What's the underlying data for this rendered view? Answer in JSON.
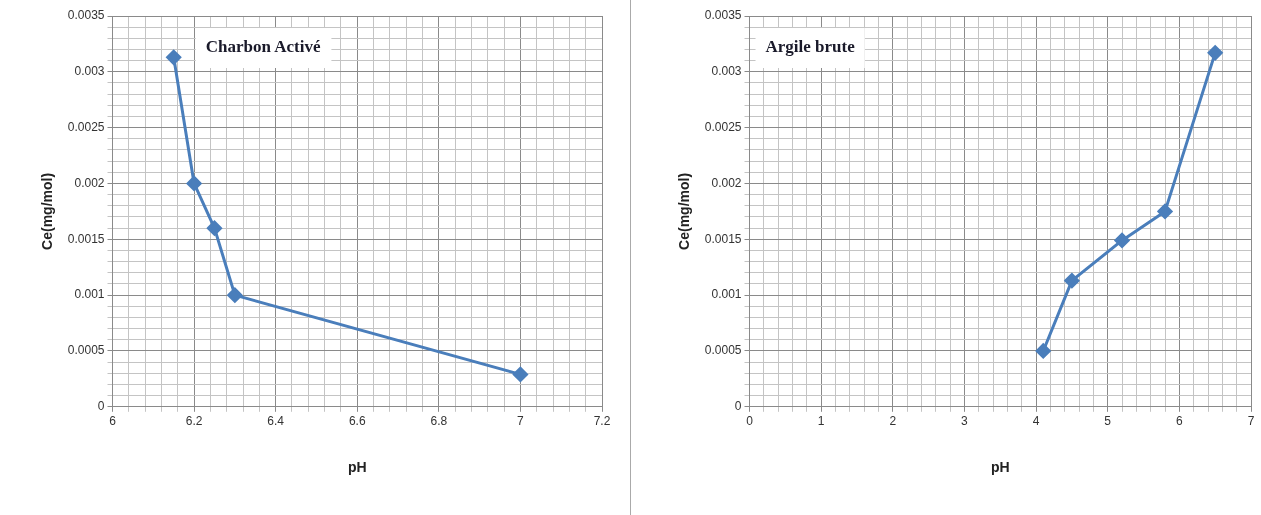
{
  "chart_data": [
    {
      "type": "line",
      "title": "Charbon Activé",
      "xlabel": "pH",
      "ylabel": "Ce(mg/mol)",
      "color": "#4a7ebb",
      "marker": "diamond",
      "grid": true,
      "x": [
        6.15,
        6.2,
        6.25,
        6.3,
        7
      ],
      "values": [
        0.00313,
        0.002,
        0.0016,
        0.001,
        0.00029
      ],
      "xlim": [
        6,
        7.2
      ],
      "ylim": [
        0,
        0.0035
      ],
      "xticks": [
        6,
        {
          "value": 6.04,
          "label": null
        },
        {
          "value": 6.08,
          "label": null
        },
        {
          "value": 6.12,
          "label": null
        },
        {
          "value": 6.16,
          "label": null
        },
        6.2,
        {
          "value": 6.24,
          "label": null
        },
        {
          "value": 6.28,
          "label": null
        },
        {
          "value": 6.32,
          "label": null
        },
        {
          "value": 6.36,
          "label": null
        },
        6.4,
        {
          "value": 6.44,
          "label": null
        },
        {
          "value": 6.48,
          "label": null
        },
        {
          "value": 6.52,
          "label": null
        },
        {
          "value": 6.56,
          "label": null
        },
        6.6,
        {
          "value": 6.64,
          "label": null
        },
        {
          "value": 6.68,
          "label": null
        },
        {
          "value": 6.72,
          "label": null
        },
        {
          "value": 6.76,
          "label": null
        },
        6.8,
        {
          "value": 6.84,
          "label": null
        },
        {
          "value": 6.88,
          "label": null
        },
        {
          "value": 6.92,
          "label": null
        },
        {
          "value": 6.96,
          "label": null
        },
        7,
        {
          "value": 7.04,
          "label": null
        },
        {
          "value": 7.08,
          "label": null
        },
        {
          "value": 7.12,
          "label": null
        },
        {
          "value": 7.16,
          "label": null
        },
        7.2
      ],
      "yticks": [
        0,
        {
          "value": 0.0001,
          "label": null
        },
        {
          "value": 0.0002,
          "label": null
        },
        {
          "value": 0.0003,
          "label": null
        },
        {
          "value": 0.0004,
          "label": null
        },
        0.0005,
        {
          "value": 0.0006,
          "label": null
        },
        {
          "value": 0.0007,
          "label": null
        },
        {
          "value": 0.0008,
          "label": null
        },
        {
          "value": 0.0009,
          "label": null
        },
        0.001,
        {
          "value": 0.0011,
          "label": null
        },
        {
          "value": 0.0012,
          "label": null
        },
        {
          "value": 0.0013,
          "label": null
        },
        {
          "value": 0.0014,
          "label": null
        },
        0.0015,
        {
          "value": 0.0016,
          "label": null
        },
        {
          "value": 0.0017,
          "label": null
        },
        {
          "value": 0.0018,
          "label": null
        },
        {
          "value": 0.0019,
          "label": null
        },
        0.002,
        {
          "value": 0.0021,
          "label": null
        },
        {
          "value": 0.0022,
          "label": null
        },
        {
          "value": 0.0023,
          "label": null
        },
        {
          "value": 0.0024,
          "label": null
        },
        0.0025,
        {
          "value": 0.0026,
          "label": null
        },
        {
          "value": 0.0027,
          "label": null
        },
        {
          "value": 0.0028,
          "label": null
        },
        {
          "value": 0.0029,
          "label": null
        },
        0.003,
        {
          "value": 0.0031,
          "label": null
        },
        {
          "value": 0.0032,
          "label": null
        },
        {
          "value": 0.0033,
          "label": null
        },
        {
          "value": 0.0034,
          "label": null
        },
        0.0035
      ]
    },
    {
      "type": "line",
      "title": "Argile brute",
      "xlabel": "pH",
      "ylabel": "Ce(mg/mol)",
      "color": "#4a7ebb",
      "marker": "diamond",
      "grid": true,
      "x": [
        4.1,
        4.5,
        5.2,
        5.8,
        6.5
      ],
      "values": [
        0.0005,
        0.00113,
        0.00149,
        0.00175,
        0.00317
      ],
      "xlim": [
        0,
        7
      ],
      "ylim": [
        0,
        0.0035
      ],
      "xticks": [
        0,
        {
          "value": 0.2,
          "label": null
        },
        {
          "value": 0.4,
          "label": null
        },
        {
          "value": 0.6,
          "label": null
        },
        {
          "value": 0.8,
          "label": null
        },
        1,
        {
          "value": 1.2,
          "label": null
        },
        {
          "value": 1.4,
          "label": null
        },
        {
          "value": 1.6,
          "label": null
        },
        {
          "value": 1.8,
          "label": null
        },
        2,
        {
          "value": 2.2,
          "label": null
        },
        {
          "value": 2.4,
          "label": null
        },
        {
          "value": 2.6,
          "label": null
        },
        {
          "value": 2.8,
          "label": null
        },
        3,
        {
          "value": 3.2,
          "label": null
        },
        {
          "value": 3.4,
          "label": null
        },
        {
          "value": 3.6,
          "label": null
        },
        {
          "value": 3.8,
          "label": null
        },
        4,
        {
          "value": 4.2,
          "label": null
        },
        {
          "value": 4.4,
          "label": null
        },
        {
          "value": 4.6,
          "label": null
        },
        {
          "value": 4.8,
          "label": null
        },
        5,
        {
          "value": 5.2,
          "label": null
        },
        {
          "value": 5.4,
          "label": null
        },
        {
          "value": 5.6,
          "label": null
        },
        {
          "value": 5.8,
          "label": null
        },
        6,
        {
          "value": 6.2,
          "label": null
        },
        {
          "value": 6.4,
          "label": null
        },
        {
          "value": 6.6,
          "label": null
        },
        {
          "value": 6.8,
          "label": null
        },
        7
      ],
      "yticks": [
        0,
        {
          "value": 0.0001,
          "label": null
        },
        {
          "value": 0.0002,
          "label": null
        },
        {
          "value": 0.0003,
          "label": null
        },
        {
          "value": 0.0004,
          "label": null
        },
        0.0005,
        {
          "value": 0.0006,
          "label": null
        },
        {
          "value": 0.0007,
          "label": null
        },
        {
          "value": 0.0008,
          "label": null
        },
        {
          "value": 0.0009,
          "label": null
        },
        0.001,
        {
          "value": 0.0011,
          "label": null
        },
        {
          "value": 0.0012,
          "label": null
        },
        {
          "value": 0.0013,
          "label": null
        },
        {
          "value": 0.0014,
          "label": null
        },
        0.0015,
        {
          "value": 0.0016,
          "label": null
        },
        {
          "value": 0.0017,
          "label": null
        },
        {
          "value": 0.0018,
          "label": null
        },
        {
          "value": 0.0019,
          "label": null
        },
        0.002,
        {
          "value": 0.0021,
          "label": null
        },
        {
          "value": 0.0022,
          "label": null
        },
        {
          "value": 0.0023,
          "label": null
        },
        {
          "value": 0.0024,
          "label": null
        },
        0.0025,
        {
          "value": 0.0026,
          "label": null
        },
        {
          "value": 0.0027,
          "label": null
        },
        {
          "value": 0.0028,
          "label": null
        },
        {
          "value": 0.0029,
          "label": null
        },
        0.003,
        {
          "value": 0.0031,
          "label": null
        },
        {
          "value": 0.0032,
          "label": null
        },
        {
          "value": 0.0033,
          "label": null
        },
        {
          "value": 0.0034,
          "label": null
        },
        0.0035
      ]
    }
  ]
}
